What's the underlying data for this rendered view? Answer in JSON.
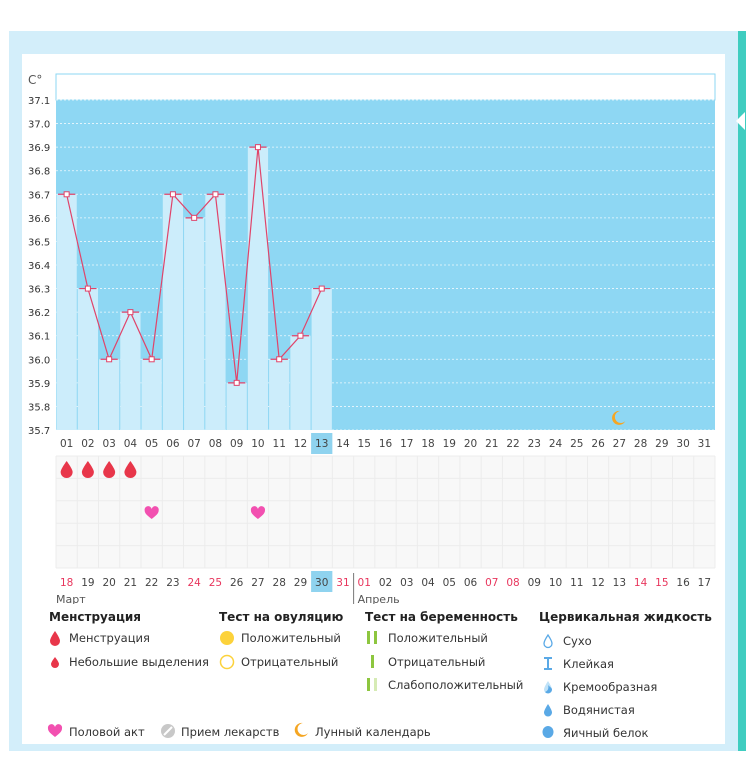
{
  "chart_data": {
    "type": "line",
    "ylabel": "C°",
    "ylim": [
      35.7,
      37.1
    ],
    "yticks": [
      "37.1",
      "37.0",
      "36.9",
      "36.8",
      "36.7",
      "36.6",
      "36.5",
      "36.4",
      "36.3",
      "36.2",
      "36.1",
      "36.0",
      "35.9",
      "35.8",
      "35.7"
    ],
    "days": [
      "01",
      "02",
      "03",
      "04",
      "05",
      "06",
      "07",
      "08",
      "09",
      "10",
      "11",
      "12",
      "13",
      "14",
      "15",
      "16",
      "17",
      "18",
      "19",
      "20",
      "21",
      "22",
      "23",
      "24",
      "25",
      "26",
      "27",
      "28",
      "29",
      "30",
      "31"
    ],
    "current_day_index": 12,
    "temperatures": [
      36.7,
      36.3,
      36.0,
      36.2,
      36.0,
      36.7,
      36.6,
      36.7,
      35.9,
      36.9,
      36.0,
      36.1,
      36.3
    ],
    "menstruation_days": [
      0,
      1,
      2,
      3
    ],
    "intercourse_days": [
      4,
      9
    ],
    "lunar_day_index": 26,
    "dates": [
      "18",
      "19",
      "20",
      "21",
      "22",
      "23",
      "24",
      "25",
      "26",
      "27",
      "28",
      "29",
      "30",
      "31",
      "01",
      "02",
      "03",
      "04",
      "05",
      "06",
      "07",
      "08",
      "09",
      "10",
      "11",
      "12",
      "13",
      "14",
      "15",
      "16",
      "17"
    ],
    "highlight_date_indices": [
      0,
      6,
      7,
      13,
      14,
      20,
      21,
      27,
      28
    ],
    "current_date_index": 12,
    "month_start": "Март",
    "month_next": "Апрель",
    "month_next_index": 14
  },
  "colors": {
    "plot_bg": "#8ed7f3",
    "bar": "#ccedfb",
    "line": "#e0446a",
    "highlight": "#8fd3ef",
    "red_date": "#e8365d",
    "drop": "#e8364a",
    "heart": "#f250b0",
    "moon": "#f5a623"
  },
  "legend": {
    "menstruation": {
      "title": "Менструация",
      "items": [
        "Менструация",
        "Небольшие выделения"
      ]
    },
    "ovulation": {
      "title": "Тест на овуляцию",
      "items": [
        "Положительный",
        "Отрицательный"
      ]
    },
    "pregnancy": {
      "title": "Тест на беременность",
      "items": [
        "Положительный",
        "Отрицательный",
        "Слабоположительный"
      ]
    },
    "cervical": {
      "title": "Цервикальная жидкость",
      "items": [
        "Сухо",
        "Клейкая",
        "Кремообразная",
        "Водянистая",
        "Яичный белок"
      ]
    },
    "bottom": [
      "Половой акт",
      "Прием лекарств",
      "Лунный календарь"
    ]
  }
}
